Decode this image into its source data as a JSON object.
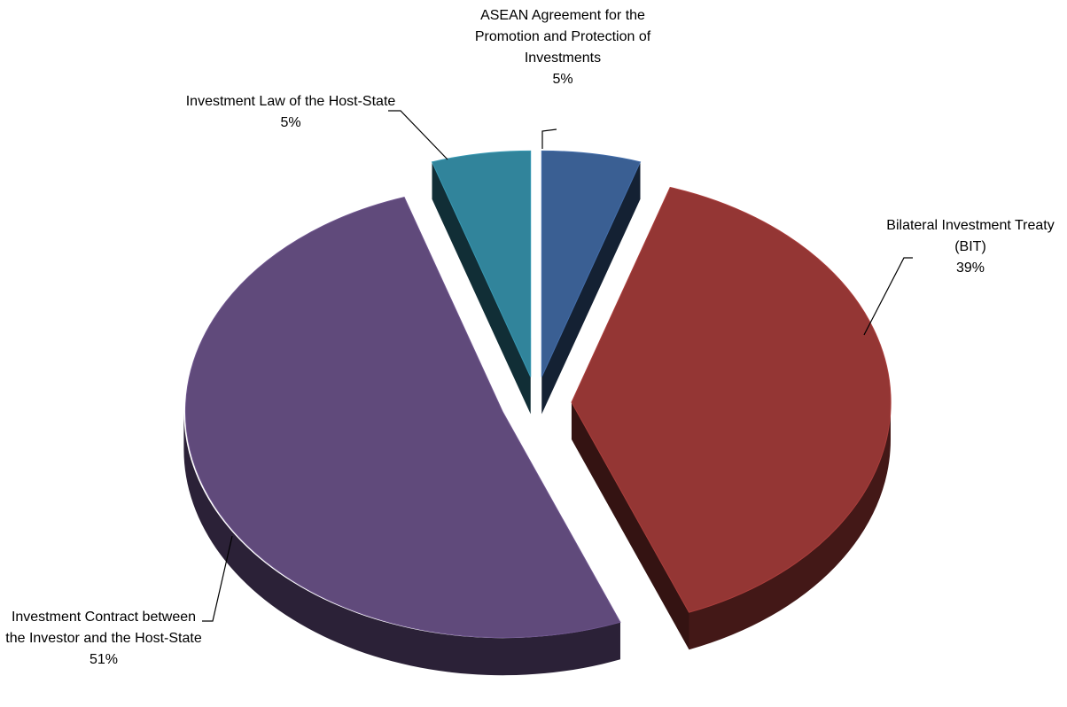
{
  "chart_data": {
    "type": "pie",
    "categories": [
      "ASEAN Agreement for the Promotion and Protection of Investments",
      "Bilateral Investment Treaty (BIT)",
      "Investment Contract between the Investor and the Host-State",
      "Investment Law of the Host-State"
    ],
    "values": [
      5,
      39,
      51,
      5
    ],
    "value_labels": [
      "5%",
      "39%",
      "51%",
      "5%"
    ],
    "colors": [
      "#3a5f93",
      "#943634",
      "#604a7b",
      "#31849b"
    ]
  }
}
